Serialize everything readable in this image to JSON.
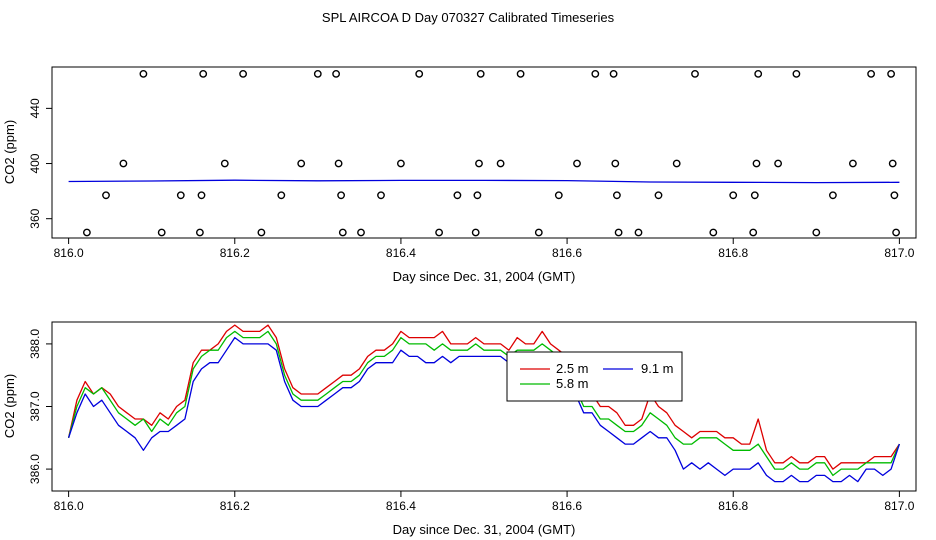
{
  "figure_title": "SPL AIRCOA D  Day 070327  Calibrated Timeseries",
  "chart_data": [
    {
      "type": "scatter",
      "xlabel": "Day since Dec. 31, 2004 (GMT)",
      "ylabel": "CO2 (ppm)",
      "xlim": [
        815.98,
        817.02
      ],
      "ylim": [
        346,
        470
      ],
      "xticks": [
        816.0,
        816.2,
        816.4,
        816.6,
        816.8,
        817.0
      ],
      "xtick_labels": [
        "816.0",
        "816.2",
        "816.4",
        "816.6",
        "816.8",
        "817.0"
      ],
      "yticks": [
        360,
        400,
        440
      ],
      "ytick_labels": [
        "360",
        "400",
        "440"
      ],
      "grid": false,
      "calibration_points": {
        "x": [
          816.022,
          816.045,
          816.066,
          816.09,
          816.112,
          816.135,
          816.158,
          816.16,
          816.162,
          816.188,
          816.21,
          816.232,
          816.256,
          816.28,
          816.3,
          816.322,
          816.325,
          816.328,
          816.33,
          816.352,
          816.376,
          816.4,
          816.422,
          816.446,
          816.468,
          816.49,
          816.492,
          816.494,
          816.496,
          816.52,
          816.544,
          816.566,
          816.59,
          816.612,
          816.634,
          816.656,
          816.658,
          816.66,
          816.662,
          816.686,
          816.71,
          816.732,
          816.754,
          816.776,
          816.8,
          816.824,
          816.826,
          816.828,
          816.83,
          816.854,
          816.876,
          816.9,
          816.92,
          816.944,
          816.966,
          816.99,
          816.992,
          816.994,
          816.996
        ],
        "y": [
          350,
          377,
          400,
          465,
          350,
          377,
          350,
          377,
          465,
          400,
          465,
          350,
          377,
          400,
          465,
          465,
          400,
          377,
          350,
          350,
          377,
          400,
          465,
          350,
          377,
          350,
          377,
          400,
          465,
          400,
          465,
          350,
          377,
          400,
          465,
          465,
          400,
          377,
          350,
          350,
          377,
          400,
          465,
          350,
          377,
          350,
          377,
          400,
          465,
          400,
          465,
          350,
          377,
          400,
          465,
          465,
          400,
          377,
          350
        ]
      },
      "series": [
        {
          "color": "#0000dd",
          "x": [
            816.0,
            816.1,
            816.2,
            816.3,
            816.4,
            816.5,
            816.6,
            816.7,
            816.8,
            816.9,
            817.0
          ],
          "values": [
            387.0,
            387.3,
            387.9,
            387.5,
            387.8,
            387.8,
            387.6,
            386.6,
            386.4,
            386.2,
            386.4
          ]
        }
      ]
    },
    {
      "type": "line",
      "xlabel": "Day since Dec. 31, 2004 (GMT)",
      "ylabel": "CO2 (ppm)",
      "xlim": [
        815.98,
        817.02
      ],
      "ylim": [
        385.65,
        388.35
      ],
      "xticks": [
        816.0,
        816.2,
        816.4,
        816.6,
        816.8,
        817.0
      ],
      "xtick_labels": [
        "816.0",
        "816.2",
        "816.4",
        "816.6",
        "816.8",
        "817.0"
      ],
      "yticks": [
        386.0,
        387.0,
        388.0
      ],
      "ytick_labels": [
        "386.0",
        "387.0",
        "388.0"
      ],
      "grid": false,
      "legend_position": "right-center",
      "series": [
        {
          "name": "2.5 m",
          "color": "#dd0000",
          "x": [
            816.0,
            816.01,
            816.02,
            816.03,
            816.04,
            816.05,
            816.06,
            816.07,
            816.08,
            816.09,
            816.1,
            816.11,
            816.12,
            816.13,
            816.14,
            816.15,
            816.16,
            816.17,
            816.18,
            816.19,
            816.2,
            816.21,
            816.22,
            816.23,
            816.24,
            816.25,
            816.26,
            816.27,
            816.28,
            816.29,
            816.3,
            816.31,
            816.32,
            816.33,
            816.34,
            816.35,
            816.36,
            816.37,
            816.38,
            816.39,
            816.4,
            816.41,
            816.42,
            816.43,
            816.44,
            816.45,
            816.46,
            816.47,
            816.48,
            816.49,
            816.5,
            816.51,
            816.52,
            816.53,
            816.54,
            816.55,
            816.56,
            816.57,
            816.58,
            816.59,
            816.6,
            816.61,
            816.62,
            816.63,
            816.64,
            816.65,
            816.66,
            816.67,
            816.68,
            816.69,
            816.7,
            816.71,
            816.72,
            816.73,
            816.74,
            816.75,
            816.76,
            816.77,
            816.78,
            816.79,
            816.8,
            816.81,
            816.82,
            816.83,
            816.84,
            816.85,
            816.86,
            816.87,
            816.88,
            816.89,
            816.9,
            816.91,
            816.92,
            816.93,
            816.94,
            816.95,
            816.96,
            816.97,
            816.98,
            816.99,
            817.0
          ],
          "values": [
            386.5,
            387.1,
            387.4,
            387.2,
            387.3,
            387.2,
            387.0,
            386.9,
            386.8,
            386.8,
            386.7,
            386.9,
            386.8,
            387.0,
            387.1,
            387.7,
            387.9,
            387.9,
            388.0,
            388.2,
            388.3,
            388.2,
            388.2,
            388.2,
            388.3,
            388.1,
            387.6,
            387.3,
            387.2,
            387.2,
            387.2,
            387.3,
            387.4,
            387.5,
            387.5,
            387.6,
            387.8,
            387.9,
            387.9,
            388.0,
            388.2,
            388.1,
            388.1,
            388.1,
            388.1,
            388.2,
            388.0,
            388.0,
            388.0,
            388.1,
            388.0,
            388.0,
            388.0,
            387.9,
            388.1,
            388.0,
            388.0,
            388.2,
            388.0,
            387.9,
            387.8,
            387.5,
            387.2,
            387.2,
            387.0,
            387.0,
            386.9,
            386.7,
            386.7,
            386.8,
            387.2,
            387.0,
            386.9,
            386.7,
            386.6,
            386.5,
            386.6,
            386.6,
            386.6,
            386.5,
            386.5,
            386.4,
            386.4,
            386.8,
            386.3,
            386.1,
            386.1,
            386.2,
            386.1,
            386.1,
            386.2,
            386.2,
            386.0,
            386.1,
            386.1,
            386.1,
            386.1,
            386.2,
            386.2,
            386.2,
            386.4
          ]
        },
        {
          "name": "5.8 m",
          "color": "#00bb00",
          "x": [
            816.0,
            816.01,
            816.02,
            816.03,
            816.04,
            816.05,
            816.06,
            816.07,
            816.08,
            816.09,
            816.1,
            816.11,
            816.12,
            816.13,
            816.14,
            816.15,
            816.16,
            816.17,
            816.18,
            816.19,
            816.2,
            816.21,
            816.22,
            816.23,
            816.24,
            816.25,
            816.26,
            816.27,
            816.28,
            816.29,
            816.3,
            816.31,
            816.32,
            816.33,
            816.34,
            816.35,
            816.36,
            816.37,
            816.38,
            816.39,
            816.4,
            816.41,
            816.42,
            816.43,
            816.44,
            816.45,
            816.46,
            816.47,
            816.48,
            816.49,
            816.5,
            816.51,
            816.52,
            816.53,
            816.54,
            816.55,
            816.56,
            816.57,
            816.58,
            816.59,
            816.6,
            816.61,
            816.62,
            816.63,
            816.64,
            816.65,
            816.66,
            816.67,
            816.68,
            816.69,
            816.7,
            816.71,
            816.72,
            816.73,
            816.74,
            816.75,
            816.76,
            816.77,
            816.78,
            816.79,
            816.8,
            816.81,
            816.82,
            816.83,
            816.84,
            816.85,
            816.86,
            816.87,
            816.88,
            816.89,
            816.9,
            816.91,
            816.92,
            816.93,
            816.94,
            816.95,
            816.96,
            816.97,
            816.98,
            816.99,
            817.0
          ],
          "values": [
            386.5,
            387.0,
            387.3,
            387.2,
            387.3,
            387.1,
            386.9,
            386.8,
            386.7,
            386.8,
            386.6,
            386.8,
            386.7,
            386.9,
            387.0,
            387.6,
            387.8,
            387.9,
            387.9,
            388.1,
            388.2,
            388.1,
            388.1,
            388.1,
            388.2,
            388.0,
            387.5,
            387.2,
            387.1,
            387.1,
            387.1,
            387.2,
            387.3,
            387.4,
            387.4,
            387.5,
            387.7,
            387.8,
            387.8,
            387.9,
            388.1,
            388.0,
            388.0,
            388.0,
            387.9,
            388.0,
            387.9,
            387.9,
            387.9,
            388.0,
            387.9,
            387.9,
            387.9,
            387.8,
            387.9,
            387.9,
            387.9,
            388.0,
            387.9,
            387.8,
            387.6,
            387.3,
            387.0,
            387.0,
            386.8,
            386.8,
            386.7,
            386.6,
            386.6,
            386.7,
            386.9,
            386.8,
            386.7,
            386.5,
            386.4,
            386.4,
            386.5,
            386.5,
            386.5,
            386.4,
            386.3,
            386.3,
            386.3,
            386.4,
            386.2,
            386.0,
            386.0,
            386.1,
            386.0,
            386.0,
            386.1,
            386.1,
            385.9,
            386.0,
            386.0,
            386.0,
            386.1,
            386.1,
            386.1,
            386.1,
            386.4
          ]
        },
        {
          "name": "9.1 m",
          "color": "#0000dd",
          "x": [
            816.0,
            816.01,
            816.02,
            816.03,
            816.04,
            816.05,
            816.06,
            816.07,
            816.08,
            816.09,
            816.1,
            816.11,
            816.12,
            816.13,
            816.14,
            816.15,
            816.16,
            816.17,
            816.18,
            816.19,
            816.2,
            816.21,
            816.22,
            816.23,
            816.24,
            816.25,
            816.26,
            816.27,
            816.28,
            816.29,
            816.3,
            816.31,
            816.32,
            816.33,
            816.34,
            816.35,
            816.36,
            816.37,
            816.38,
            816.39,
            816.4,
            816.41,
            816.42,
            816.43,
            816.44,
            816.45,
            816.46,
            816.47,
            816.48,
            816.49,
            816.5,
            816.51,
            816.52,
            816.53,
            816.54,
            816.55,
            816.56,
            816.57,
            816.58,
            816.59,
            816.6,
            816.61,
            816.62,
            816.63,
            816.64,
            816.65,
            816.66,
            816.67,
            816.68,
            816.69,
            816.7,
            816.71,
            816.72,
            816.73,
            816.74,
            816.75,
            816.76,
            816.77,
            816.78,
            816.79,
            816.8,
            816.81,
            816.82,
            816.83,
            816.84,
            816.85,
            816.86,
            816.87,
            816.88,
            816.89,
            816.9,
            816.91,
            816.92,
            816.93,
            816.94,
            816.95,
            816.96,
            816.97,
            816.98,
            816.99,
            817.0
          ],
          "values": [
            386.5,
            386.9,
            387.2,
            387.0,
            387.1,
            386.9,
            386.7,
            386.6,
            386.5,
            386.3,
            386.5,
            386.6,
            386.6,
            386.7,
            386.8,
            387.4,
            387.6,
            387.7,
            387.7,
            387.9,
            388.1,
            388.0,
            388.0,
            388.0,
            388.0,
            387.9,
            387.4,
            387.1,
            387.0,
            387.0,
            387.0,
            387.1,
            387.2,
            387.3,
            387.3,
            387.4,
            387.6,
            387.7,
            387.7,
            387.7,
            387.9,
            387.8,
            387.8,
            387.7,
            387.7,
            387.8,
            387.7,
            387.8,
            387.8,
            387.8,
            387.8,
            387.8,
            387.8,
            387.7,
            387.8,
            387.8,
            387.8,
            387.8,
            387.8,
            387.7,
            387.4,
            387.2,
            386.9,
            386.9,
            386.7,
            386.6,
            386.5,
            386.4,
            386.4,
            386.5,
            386.6,
            386.5,
            386.5,
            386.3,
            386.0,
            386.1,
            386.0,
            386.1,
            386.0,
            385.9,
            386.0,
            386.0,
            386.0,
            386.1,
            385.9,
            385.8,
            385.8,
            385.9,
            385.8,
            385.8,
            385.9,
            385.9,
            385.8,
            385.8,
            385.9,
            385.8,
            386.0,
            386.0,
            385.9,
            386.0,
            386.4
          ]
        }
      ]
    }
  ]
}
